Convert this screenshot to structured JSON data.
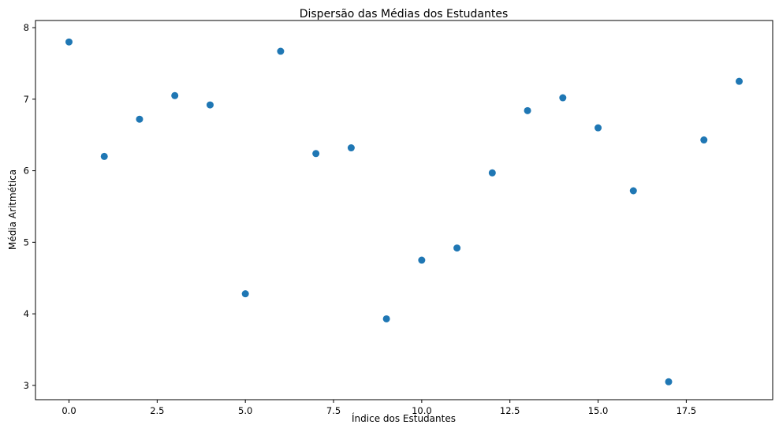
{
  "chart_data": {
    "type": "scatter",
    "title": "Dispersão das Médias dos Estudantes",
    "xlabel": "Índice dos Estudantes",
    "ylabel": "Média Aritmética",
    "xlim": [
      -0.95,
      19.95
    ],
    "ylim": [
      2.8,
      8.1
    ],
    "xticks": [
      0.0,
      2.5,
      5.0,
      7.5,
      10.0,
      12.5,
      15.0,
      17.5
    ],
    "xtick_labels": [
      "0.0",
      "2.5",
      "5.0",
      "7.5",
      "10.0",
      "12.5",
      "15.0",
      "17.5"
    ],
    "yticks": [
      3,
      4,
      5,
      6,
      7,
      8
    ],
    "ytick_labels": [
      "3",
      "4",
      "5",
      "6",
      "7",
      "8"
    ],
    "grid": false,
    "series": [
      {
        "color": "#1f77b4",
        "x": [
          0,
          1,
          2,
          3,
          4,
          5,
          6,
          7,
          8,
          9,
          10,
          11,
          12,
          13,
          14,
          15,
          16,
          17,
          18,
          19
        ],
        "y": [
          7.8,
          6.2,
          6.72,
          7.05,
          6.92,
          4.28,
          7.67,
          6.24,
          6.32,
          3.93,
          4.75,
          4.92,
          5.97,
          6.84,
          7.02,
          6.6,
          5.72,
          3.05,
          6.43,
          7.25
        ]
      }
    ]
  }
}
